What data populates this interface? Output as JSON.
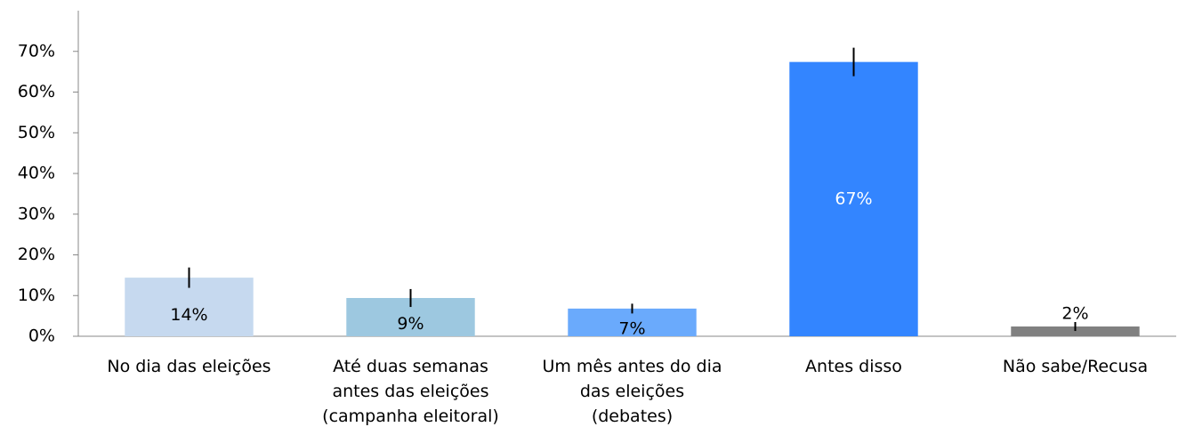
{
  "chart_data": {
    "type": "bar",
    "categories": [
      "No dia das eleições",
      "Até duas semanas\nantes das eleições\n(campanha eleitoral)",
      "Um mês antes do dia\ndas eleições\n(debates)",
      "Antes disso",
      "Não sabe/Recusa"
    ],
    "values": [
      14.4,
      9.4,
      6.8,
      67.4,
      2.4
    ],
    "value_labels": [
      "14%",
      "9%",
      "7%",
      "67%",
      "2%"
    ],
    "errors": [
      2.5,
      2.2,
      1.2,
      3.5,
      1.1
    ],
    "colors": [
      "#c6d9ef",
      "#9dc8e0",
      "#6aaafc",
      "#3385ff",
      "#808080"
    ],
    "label_colors": [
      "#000000",
      "#000000",
      "#000000",
      "#ffffff",
      "#000000"
    ],
    "ylim": [
      0,
      80
    ],
    "yticks": [
      {
        "value": 0,
        "label": "0%"
      },
      {
        "value": 10,
        "label": "10%"
      },
      {
        "value": 20,
        "label": "20%"
      },
      {
        "value": 30,
        "label": "30%"
      },
      {
        "value": 40,
        "label": "40%"
      },
      {
        "value": 50,
        "label": "50%"
      },
      {
        "value": 60,
        "label": "60%"
      },
      {
        "value": 70,
        "label": "70%"
      }
    ]
  }
}
